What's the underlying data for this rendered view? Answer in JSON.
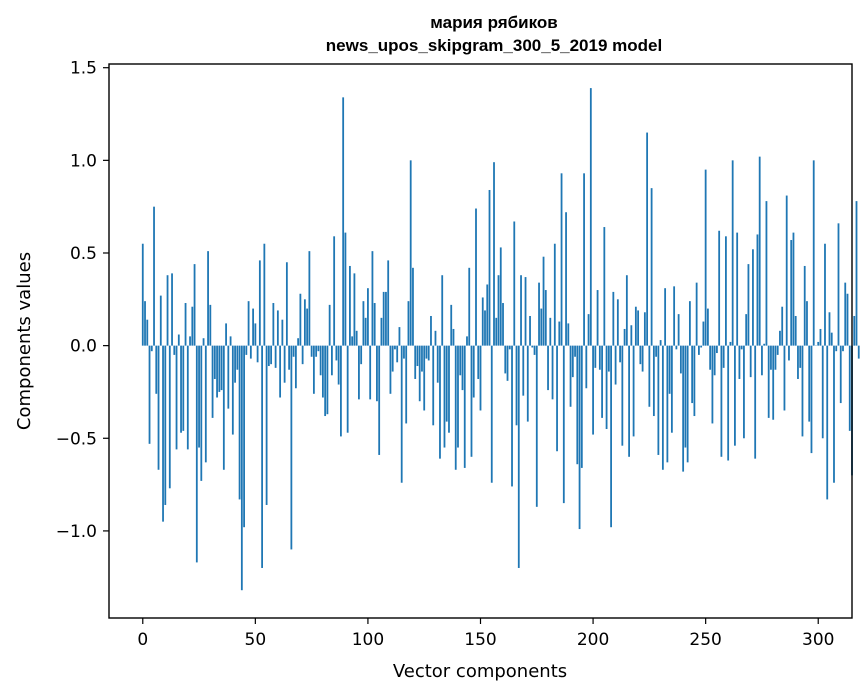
{
  "chart_data": {
    "type": "bar",
    "title_line1": "мария рябиков",
    "title_line2": "news_upos_skipgram_300_5_2019 model",
    "xlabel": "Vector components",
    "ylabel": "Components values",
    "xlim": [
      -15,
      315
    ],
    "ylim": [
      -1.47,
      1.52
    ],
    "x_ticks": [
      0,
      50,
      100,
      150,
      200,
      250,
      300
    ],
    "x_tick_labels": [
      "0",
      "50",
      "100",
      "150",
      "200",
      "250",
      "300"
    ],
    "y_ticks": [
      1.5,
      1.0,
      0.5,
      0.0,
      -0.5,
      -1.0
    ],
    "y_tick_labels": [
      "1.5",
      "1.0",
      "0.5",
      "0.0",
      "−0.5",
      "−1.0"
    ],
    "bar_color": "#1f77b4",
    "grid": false,
    "values": [
      0.55,
      0.24,
      0.14,
      -0.53,
      -0.03,
      0.75,
      -0.26,
      -0.67,
      0.27,
      -0.95,
      -0.86,
      0.38,
      -0.77,
      0.39,
      -0.05,
      -0.56,
      0.06,
      -0.47,
      -0.46,
      0.23,
      -0.56,
      0.05,
      0.21,
      0.44,
      -1.17,
      -0.55,
      -0.73,
      0.04,
      -0.63,
      0.51,
      0.22,
      -0.39,
      -0.18,
      -0.28,
      -0.25,
      -0.24,
      -0.67,
      0.12,
      -0.34,
      0.05,
      -0.48,
      -0.2,
      -0.13,
      -0.83,
      -1.32,
      -0.98,
      -0.05,
      0.24,
      -0.07,
      0.2,
      0.12,
      -0.09,
      0.46,
      -1.2,
      0.55,
      -0.86,
      -0.11,
      -0.1,
      0.23,
      -0.12,
      0.19,
      -0.28,
      0.14,
      -0.2,
      0.45,
      -0.13,
      -1.1,
      -0.06,
      -0.23,
      0.04,
      0.28,
      -0.1,
      0.25,
      0.2,
      0.51,
      -0.06,
      -0.26,
      -0.06,
      -0.03,
      -0.16,
      -0.28,
      -0.38,
      -0.37,
      0.22,
      -0.16,
      0.59,
      -0.08,
      -0.21,
      -0.49,
      1.34,
      0.61,
      -0.47,
      0.43,
      0.05,
      0.39,
      0.08,
      -0.29,
      -0.1,
      0.24,
      0.15,
      0.31,
      -0.29,
      0.51,
      0.23,
      -0.3,
      -0.59,
      0.15,
      0.29,
      0.29,
      0.46,
      -0.26,
      -0.14,
      -0.02,
      -0.09,
      0.1,
      -0.74,
      -0.07,
      -0.42,
      0.24,
      1.0,
      0.42,
      -0.18,
      -0.11,
      -0.3,
      -0.14,
      -0.35,
      -0.07,
      -0.08,
      0.16,
      -0.43,
      0.08,
      -0.2,
      -0.61,
      0.38,
      -0.55,
      -0.41,
      -0.47,
      0.22,
      0.09,
      -0.67,
      -0.55,
      -0.16,
      -0.24,
      -0.66,
      0.05,
      0.42,
      -0.6,
      -0.28,
      0.74,
      -0.18,
      -0.35,
      0.26,
      0.19,
      0.33,
      0.84,
      -0.74,
      0.99,
      0.15,
      0.38,
      0.53,
      0.23,
      -0.15,
      -0.19,
      -0.02,
      -0.76,
      0.67,
      -0.43,
      -1.2,
      0.38,
      -0.27,
      0.37,
      -0.41,
      0.16,
      -0.01,
      -0.05,
      -0.87,
      0.34,
      0.2,
      0.48,
      0.3,
      -0.24,
      0.15,
      -0.29,
      0.55,
      -0.57,
      0.13,
      0.93,
      -0.85,
      0.72,
      0.12,
      -0.33,
      -0.17,
      -0.06,
      -0.64,
      -0.99,
      -0.66,
      0.93,
      -0.23,
      0.17,
      1.39,
      -0.48,
      -0.12,
      0.3,
      -0.13,
      -0.39,
      0.64,
      -0.45,
      -0.14,
      -0.98,
      0.29,
      -0.21,
      0.25,
      -0.09,
      -0.54,
      0.09,
      0.38,
      -0.6,
      0.11,
      -0.49,
      0.21,
      0.19,
      -0.1,
      -0.14,
      0.18,
      1.15,
      -0.33,
      0.85,
      -0.38,
      -0.06,
      -0.59,
      0.03,
      -0.67,
      0.31,
      -0.63,
      -0.26,
      -0.47,
      0.32,
      -0.02,
      0.17,
      -0.15,
      -0.68,
      -0.55,
      -0.63,
      0.24,
      -0.31,
      -0.38,
      0.34,
      -0.05,
      -0.01,
      0.13,
      0.95,
      0.2,
      -0.13,
      -0.42,
      -0.16,
      -0.04,
      0.62,
      -0.6,
      -0.12,
      0.59,
      -0.62,
      0.02,
      1.0,
      -0.54,
      0.61,
      -0.18,
      -0.02,
      -0.5,
      0.17,
      0.44,
      -0.17,
      0.52,
      -0.61,
      0.6,
      1.02,
      -0.16,
      0.01,
      0.78,
      -0.39,
      -0.13,
      -0.4,
      -0.13,
      -0.05,
      0.08,
      0.21,
      -0.35,
      0.81,
      -0.08,
      0.57,
      0.61,
      0.16,
      -0.18,
      -0.12,
      -0.49,
      0.43,
      0.24,
      -0.41,
      -0.58,
      1.0,
      0.0,
      0.02,
      0.09,
      -0.5,
      0.55,
      -0.83,
      0.18,
      0.07,
      -0.74,
      -0.03,
      0.66,
      -0.31,
      -0.03,
      0.34,
      0.28,
      -0.46,
      -0.7,
      0.16,
      0.78,
      -0.07
    ]
  }
}
